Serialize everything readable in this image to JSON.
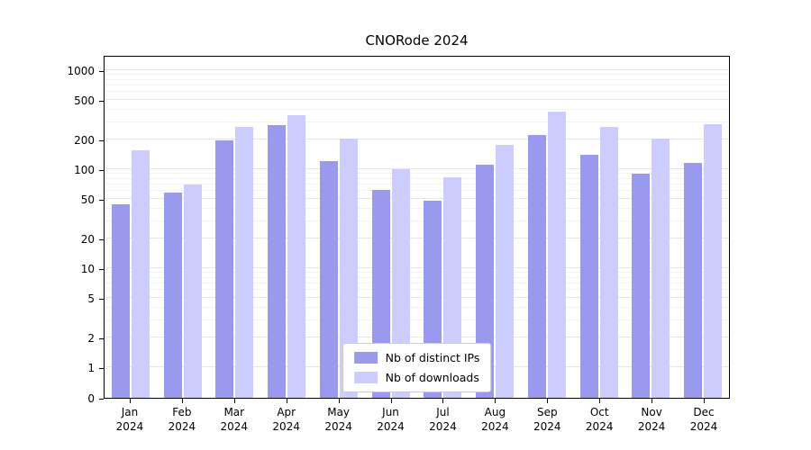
{
  "chart_data": {
    "type": "bar",
    "title": "CNORode 2024",
    "categories": [
      "Jan 2024",
      "Feb 2024",
      "Mar 2024",
      "Apr 2024",
      "May 2024",
      "Jun 2024",
      "Jul 2024",
      "Aug 2024",
      "Sep 2024",
      "Oct 2024",
      "Nov 2024",
      "Dec 2024"
    ],
    "series": [
      {
        "name": "Nb of distinct IPs",
        "color": "#9999ee",
        "values": [
          44,
          58,
          195,
          280,
          120,
          62,
          48,
          110,
          220,
          140,
          90,
          115
        ]
      },
      {
        "name": "Nb of downloads",
        "color": "#ccccff",
        "values": [
          155,
          70,
          265,
          350,
          205,
          100,
          82,
          175,
          380,
          270,
          205,
          285
        ]
      }
    ],
    "yticks": [
      0,
      1,
      2,
      5,
      10,
      20,
      50,
      100,
      200,
      500,
      1000
    ],
    "yscale": "symlog",
    "ylim": [
      0,
      1500
    ],
    "xlabel": "",
    "ylabel": "",
    "grid": true,
    "legend_position": "lower center"
  },
  "colors": {
    "distinct_ips": "#9999ee",
    "downloads": "#ccccff",
    "gridline_major": "#e6e6e6",
    "gridline_minor": "#f3f3f3",
    "axis": "#000000",
    "legend_border": "#cccccc"
  }
}
